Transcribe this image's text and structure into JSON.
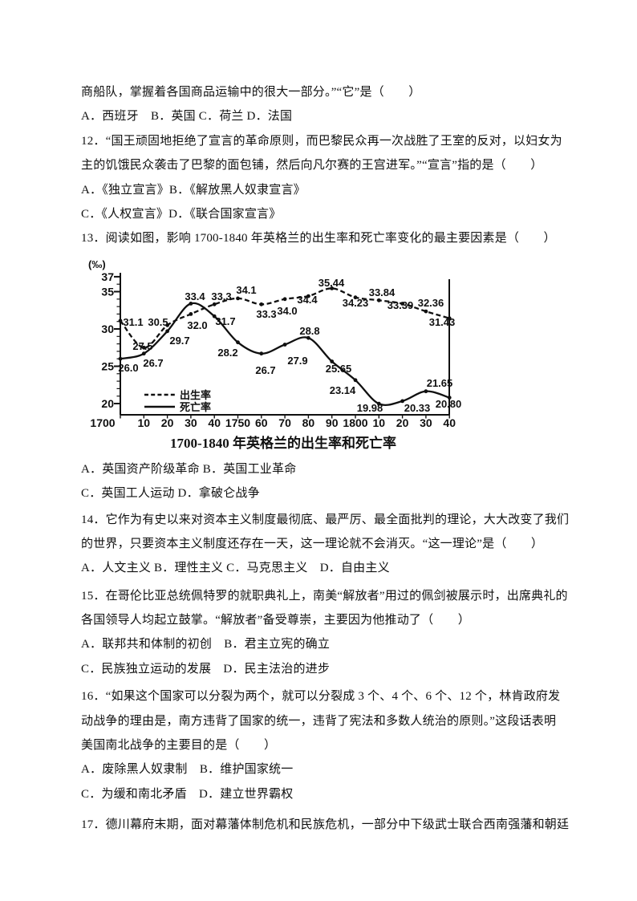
{
  "content": {
    "q11": {
      "line1": "商船队，掌握着各国商品运输中的很大一部分。”“它”是（　　）",
      "options_line": "A．西班牙　B．英国 C．荷兰 D．法国"
    },
    "q12": {
      "line1": "12．“国王顽固地拒绝了宣言的革命原则，而巴黎民众再一次战胜了王室的反对，以妇女为",
      "line2": "主的饥饿民众袭击了巴黎的面包铺，然后向凡尔赛的王宫进军。”“宣言”指的是（　　）",
      "options_line1": "A．《独立宣言》B．《解放黑人奴隶宣言》",
      "options_line2": "C．《人权宣言》D．《联合国家宣言》"
    },
    "q13": {
      "stem": "13．阅读如图，影响 1700-1840 年英格兰的出生率和死亡率变化的最主要因素是（　　）",
      "options_line1": "A．英国资产阶级革命 B．英国工业革命",
      "options_line2": "C．英国工人运动 D．拿破仑战争"
    },
    "q14": {
      "line1": "14．它作为有史以来对资本主义制度最彻底、最严厉、最全面批判的理论，大大改变了我们",
      "line2": "的世界，只要资本主义制度还存在一天，这一理论就不会消灭。“这一理论”是（　　）",
      "options_line": "A．人文主义 B．理性主义 C．马克思主义　D．自由主义"
    },
    "q15": {
      "line1": "15．在哥伦比亚总统佩特罗的就职典礼上，南美“解放者”用过的佩剑被展示时，出席典礼的",
      "line2": "各国领导人均起立鼓掌。“解放者”备受尊崇，主要因为他推动了（　　）",
      "options_line1": "A．联邦共和体制的初创　B．君主立宪的确立",
      "options_line2": "C．民族独立运动的发展　D．民主法治的进步"
    },
    "q16": {
      "line1": "16．“如果这个国家可以分裂为两个，就可以分裂成 3 个、4 个、6 个、12 个，林肯政府发",
      "line2": "动战争的理由是，南方违背了国家的统一，违背了宪法和多数人统治的原则。”这段话表明",
      "line3": "美国南北战争的主要目的是（　　）",
      "options_line1": "A．废除黑人奴隶制　B．维护国家统一",
      "options_line2": "C．为缓和南北矛盾　D．建立世界霸权"
    },
    "q17": {
      "line1": "17．德川幕府末期，面对幕藩体制危机和民族危机，一部分中下级武士联合西南强藩和朝廷"
    }
  },
  "chart_data": {
    "type": "line",
    "title": "1700-1840 年英格兰的出生率和死亡率",
    "unit_label": "(‰)",
    "x": [
      1700,
      1710,
      1720,
      1730,
      1740,
      1750,
      1760,
      1770,
      1780,
      1790,
      1800,
      1810,
      1820,
      1830,
      1840
    ],
    "x_tick_labels": [
      "1700",
      "10",
      "20",
      "30",
      "40",
      "1750",
      "60",
      "70",
      "80",
      "90",
      "1800",
      "10",
      "20",
      "30",
      "40"
    ],
    "y_ticks": [
      37,
      35,
      30,
      25,
      20
    ],
    "ylim": [
      20,
      37
    ],
    "grid": false,
    "legend_position": "inside-bottom-left",
    "series": [
      {
        "name": "出生率",
        "style": "dashed",
        "values": [
          31.1,
          27.5,
          30.5,
          32.0,
          33.3,
          34.1,
          33.3,
          34.0,
          34.4,
          35.44,
          34.23,
          33.84,
          33.39,
          32.36,
          31.43
        ],
        "point_labels": [
          "31.1",
          "27.5",
          "30.5",
          "32.0",
          "33.3",
          "34.1",
          "33.3",
          "34.0",
          "34.4",
          "35.44",
          "34.23",
          "33.84",
          "33.39",
          "32.36",
          "31.43"
        ]
      },
      {
        "name": "死亡率",
        "style": "solid",
        "values": [
          26.0,
          26.7,
          29.7,
          33.4,
          31.7,
          28.2,
          26.7,
          27.9,
          28.8,
          25.65,
          23.14,
          19.98,
          20.33,
          21.65,
          20.8
        ],
        "point_labels": [
          "26.0",
          "26.7",
          "29.7",
          "33.4",
          "31.7",
          "28.2",
          "26.7",
          "27.9",
          "28.8",
          "25.65",
          "23.14",
          "19.98",
          "20.33",
          "21.65",
          "20.80"
        ]
      }
    ]
  }
}
